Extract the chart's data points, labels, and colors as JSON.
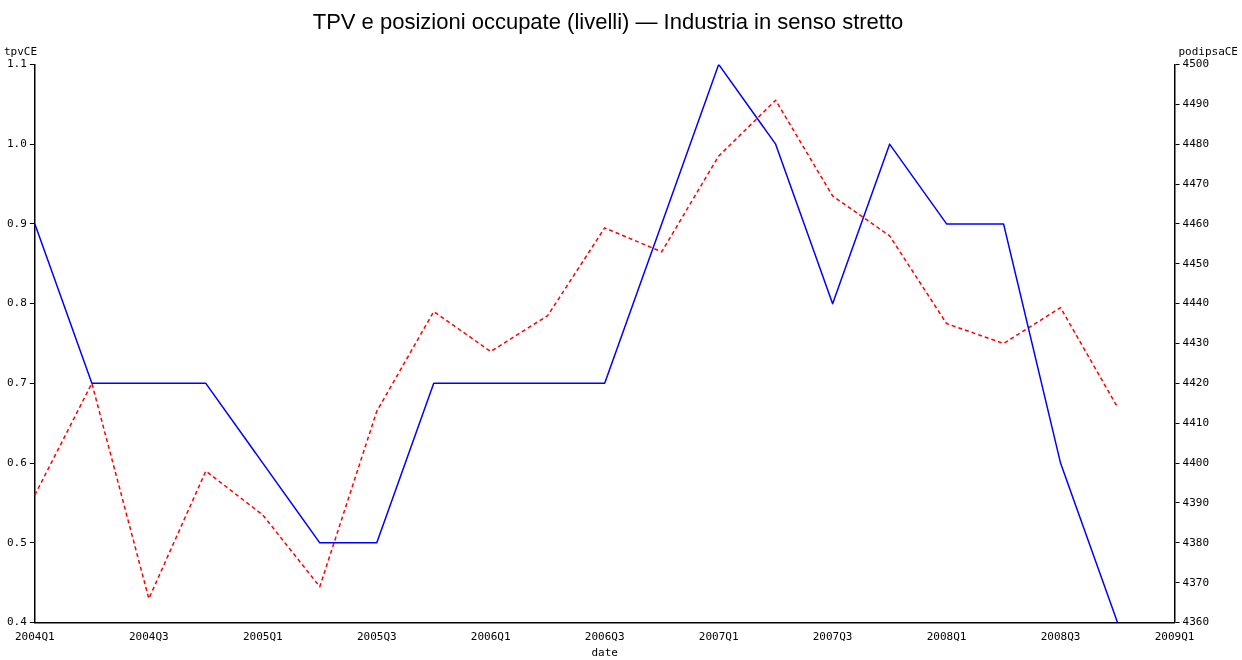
{
  "chart_data": {
    "type": "line",
    "title": "TPV e posizioni occupate (livelli) — Industria in senso stretto",
    "xlabel": "date",
    "ylabel": "tpvCE",
    "y2label": "podipsaCE",
    "categories": [
      "2004Q1",
      null,
      "2004Q3",
      null,
      "2005Q1",
      null,
      "2005Q3",
      null,
      "2006Q1",
      null,
      "2006Q3",
      null,
      "2007Q1",
      null,
      "2007Q3",
      null,
      "2008Q1",
      null,
      "2008Q3",
      null,
      "2009Q1"
    ],
    "series": [
      {
        "color": "#0000ff",
        "line_style": "solid",
        "values": [
          0.9,
          0.7,
          0.7,
          0.7,
          0.6,
          0.5,
          0.5,
          0.7,
          0.7,
          0.7,
          0.7,
          0.9,
          1.1,
          1.0,
          0.8,
          1.0,
          0.9,
          0.9,
          0.6,
          0.4,
          null
        ]
      },
      {
        "color": "#ff0000",
        "axis": "y2",
        "line_style": "dashed",
        "values": [
          4392,
          4420,
          4366,
          4398,
          4387,
          4369,
          4413,
          4438,
          4428,
          4437,
          4459,
          4453,
          4477,
          4491,
          4467,
          4457,
          4435,
          4430,
          4439,
          4414,
          null
        ]
      }
    ],
    "ylim": [
      0.4,
      1.1
    ],
    "yticks": [
      0.4,
      0.5,
      0.6,
      0.7,
      0.8,
      0.9,
      {
        "value": 1.0,
        "label": "1.0"
      },
      1.1
    ],
    "y2lim": [
      4360,
      4500
    ],
    "y2ticks": [
      4360,
      4370,
      4380,
      4390,
      4400,
      4410,
      4420,
      4430,
      4440,
      4450,
      4460,
      4470,
      4480,
      4490,
      4500
    ],
    "grid": false,
    "legend": false,
    "marker": "none"
  }
}
